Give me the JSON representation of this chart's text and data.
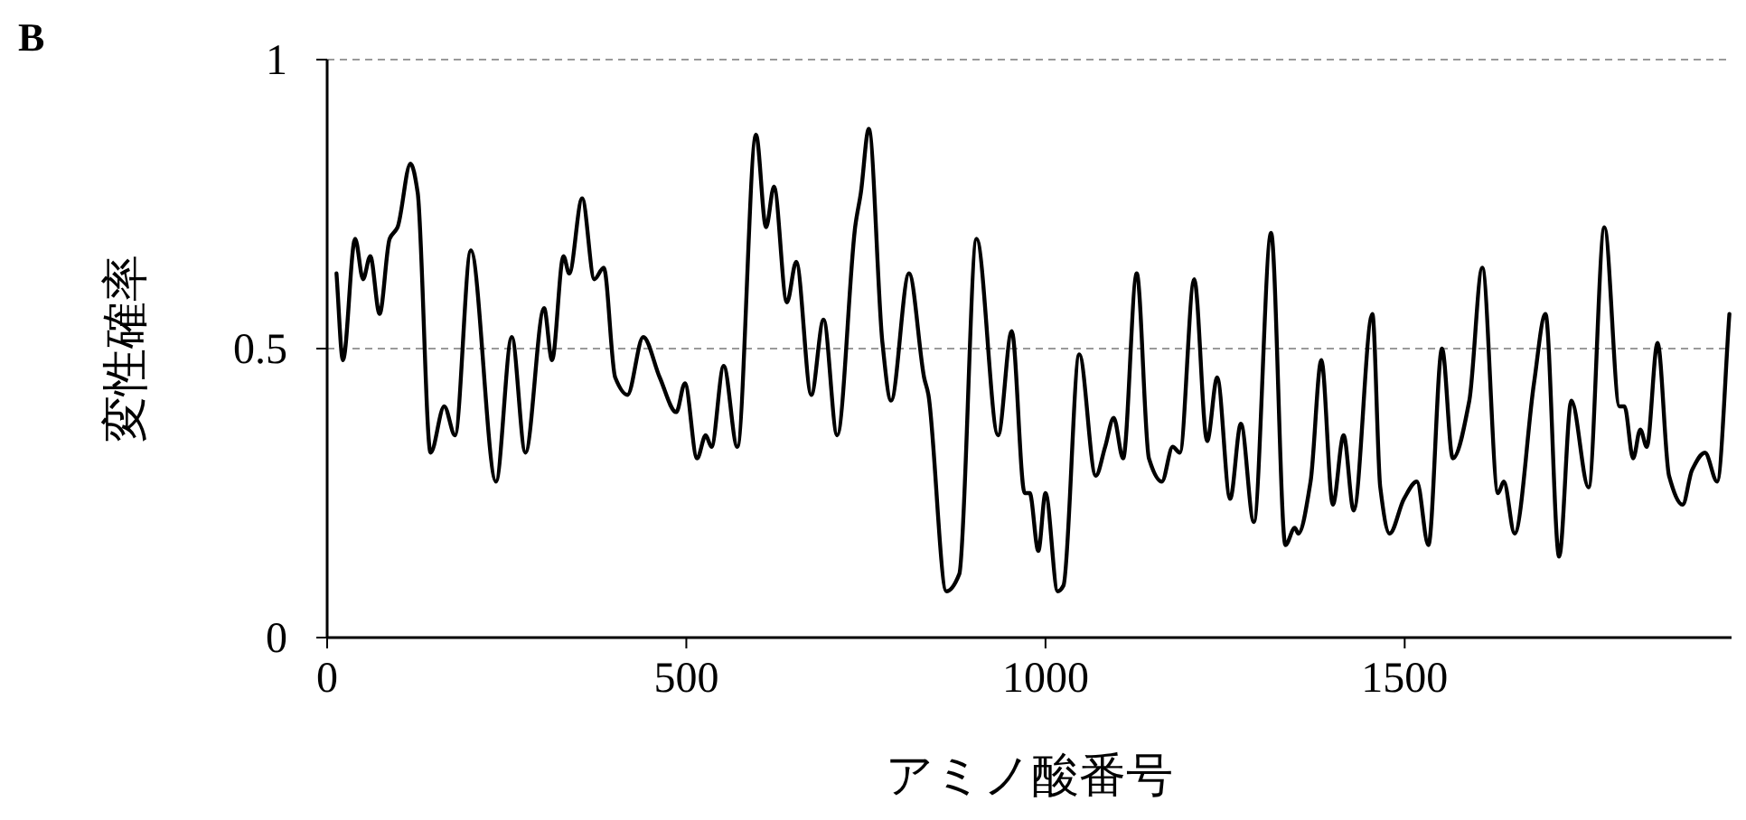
{
  "chart_data": {
    "type": "line",
    "xlabel": "アミノ酸番号",
    "ylabel": "変性確率",
    "annotations": [
      "B"
    ],
    "xlim": [
      0,
      1955
    ],
    "ylim": [
      0,
      1
    ],
    "xticks": [
      0,
      500,
      1000,
      1500
    ],
    "yticks": [
      0,
      0.5,
      1
    ],
    "grid": "y",
    "marker": "none",
    "line_style": "solid",
    "series": [
      {
        "color": "#000000",
        "x": [
          13,
          22,
          39,
          50,
          60,
          73,
          87,
          98,
          116,
          126,
          144,
          163,
          178,
          200,
          235,
          257,
          276,
          302,
          313,
          329,
          337,
          355,
          372,
          385,
          401,
          418,
          440,
          463,
          486,
          498,
          515,
          527,
          535,
          552,
          571,
          597,
          611,
          622,
          640,
          653,
          674,
          691,
          710,
          735,
          743,
          754,
          773,
          785,
          810,
          831,
          837,
          862,
          880,
          904,
          934,
          953,
          971,
          978,
          990,
          1000,
          1017,
          1025,
          1047,
          1070,
          1083,
          1095,
          1108,
          1127,
          1144,
          1162,
          1177,
          1187,
          1207,
          1225,
          1239,
          1257,
          1272,
          1290,
          1314,
          1334,
          1347,
          1352,
          1369,
          1384,
          1400,
          1415,
          1429,
          1455,
          1466,
          1479,
          1499,
          1517,
          1533,
          1552,
          1567,
          1590,
          1608,
          1630,
          1638,
          1653,
          1680,
          1696,
          1715,
          1732,
          1756,
          1778,
          1799,
          1806,
          1818,
          1828,
          1837,
          1852,
          1868,
          1887,
          1900,
          1918,
          1935,
          1952
        ],
        "values": [
          0.63,
          0.48,
          0.69,
          0.62,
          0.66,
          0.56,
          0.69,
          0.71,
          0.82,
          0.77,
          0.32,
          0.4,
          0.35,
          0.67,
          0.27,
          0.52,
          0.32,
          0.57,
          0.48,
          0.66,
          0.63,
          0.76,
          0.62,
          0.64,
          0.45,
          0.42,
          0.52,
          0.45,
          0.39,
          0.44,
          0.31,
          0.35,
          0.33,
          0.47,
          0.33,
          0.87,
          0.71,
          0.78,
          0.58,
          0.65,
          0.42,
          0.55,
          0.35,
          0.71,
          0.77,
          0.88,
          0.51,
          0.41,
          0.63,
          0.45,
          0.42,
          0.08,
          0.11,
          0.69,
          0.35,
          0.53,
          0.25,
          0.25,
          0.15,
          0.25,
          0.08,
          0.09,
          0.49,
          0.28,
          0.33,
          0.38,
          0.31,
          0.63,
          0.31,
          0.27,
          0.33,
          0.32,
          0.62,
          0.34,
          0.45,
          0.24,
          0.37,
          0.2,
          0.7,
          0.16,
          0.19,
          0.18,
          0.27,
          0.48,
          0.23,
          0.35,
          0.22,
          0.56,
          0.26,
          0.18,
          0.24,
          0.27,
          0.16,
          0.5,
          0.31,
          0.41,
          0.64,
          0.25,
          0.27,
          0.18,
          0.44,
          0.56,
          0.14,
          0.41,
          0.26,
          0.71,
          0.4,
          0.4,
          0.31,
          0.36,
          0.33,
          0.51,
          0.28,
          0.23,
          0.29,
          0.32,
          0.27,
          0.56
        ]
      }
    ]
  }
}
